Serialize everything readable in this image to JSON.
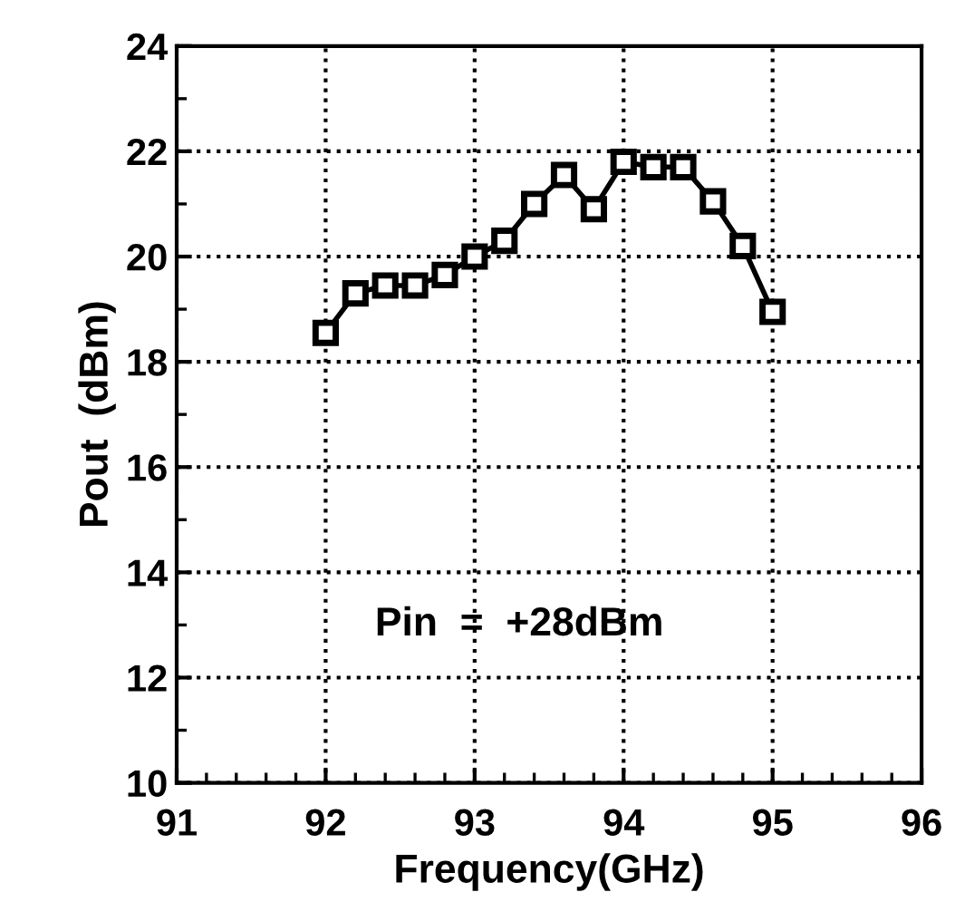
{
  "chart_data": {
    "type": "line",
    "xlabel": "Frequency(GHz)",
    "ylabel": "Pout  (dBm)",
    "x": [
      92.0,
      92.2,
      92.4,
      92.6,
      92.8,
      93.0,
      93.2,
      93.4,
      93.6,
      93.8,
      94.0,
      94.2,
      94.4,
      94.6,
      94.8,
      95.0
    ],
    "series": [
      {
        "color": "#000000",
        "values": [
          18.55,
          19.3,
          19.45,
          19.45,
          19.65,
          20.0,
          20.3,
          21.0,
          21.55,
          20.9,
          21.8,
          21.7,
          21.7,
          21.05,
          20.2,
          18.95
        ]
      }
    ],
    "xlim": [
      91,
      96
    ],
    "ylim": [
      10,
      24
    ],
    "xticks": [
      91,
      92,
      93,
      94,
      95,
      96
    ],
    "yticks": [
      10,
      12,
      14,
      16,
      18,
      20,
      22,
      24
    ],
    "annotations": [
      "Pin  =  +28dBm"
    ],
    "grid": true,
    "marker": "square",
    "line_style": "solid"
  }
}
